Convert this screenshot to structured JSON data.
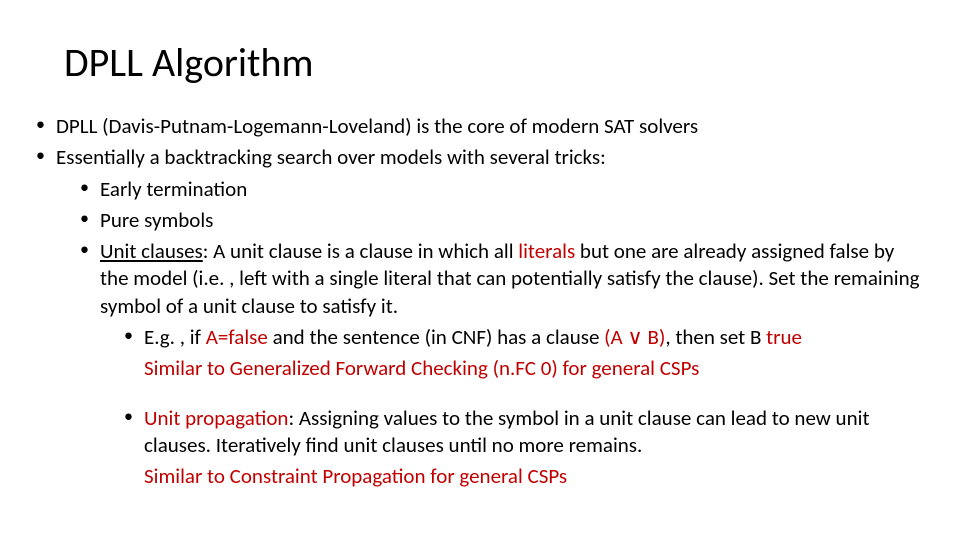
{
  "colors": {
    "text": "#000000",
    "accent": "#c00000",
    "background": "#ffffff"
  },
  "typography": {
    "title_fontsize": 40,
    "body_fontsize": 21,
    "font_family": "Calibri"
  },
  "title": "DPLL Algorithm",
  "b1": "DPLL (Davis-Putnam-Logemann-Loveland) is the core of modern SAT solvers",
  "b2": "Essentially a backtracking search over models with several tricks:",
  "s1": "Early termination",
  "s2": "Pure symbols",
  "s3_label": "Unit clauses",
  "s3_a": ": A unit clause is a clause in which all ",
  "s3_literals": "literals",
  "s3_b": " but one are already assigned false by the model (i.e. , left with a single literal that can potentially satisfy the clause). Set the remaining symbol of a unit clause to satisfy it.",
  "eg_a": "E.g. , if ",
  "eg_afalse": "A=false",
  "eg_b": " and the sentence (in CNF) has a clause ",
  "eg_clause": "(A ∨ B)",
  "eg_c": ", then set B ",
  "eg_true": "true",
  "similar1": "Similar to Generalized Forward Checking (n.FC 0) for general CSPs",
  "up_a": "Unit propagation",
  "up_b": ": Assigning values to the symbol in a unit clause can lead to new unit clauses. Iteratively find unit clauses until no more remains.",
  "similar2": "Similar to Constraint Propagation for general CSPs"
}
